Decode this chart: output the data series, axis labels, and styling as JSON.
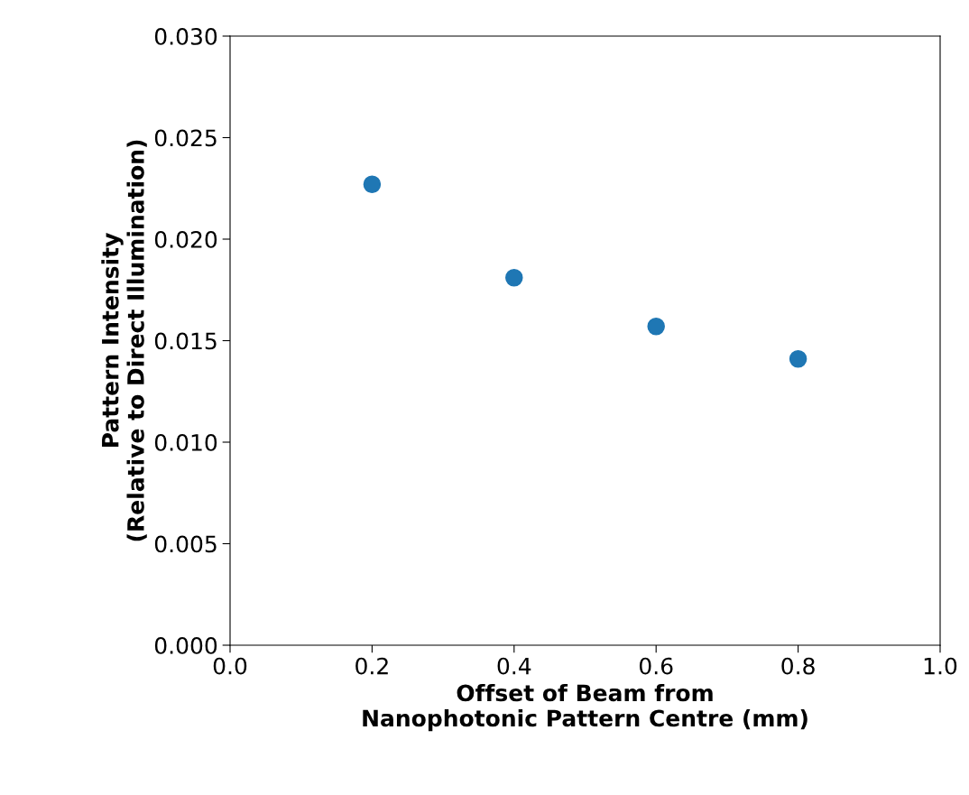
{
  "chart_data": {
    "type": "scatter",
    "xlabel": "Offset of Beam from\nNanophotonic Pattern Centre (mm)",
    "ylabel": "Pattern Intensity\n(Relative to Direct Illumination)",
    "x": [
      0.2,
      0.4,
      0.6,
      0.8
    ],
    "series": [
      {
        "color": "#1f77b4",
        "values": [
          0.0227,
          0.0181,
          0.0157,
          0.0141
        ]
      }
    ],
    "xlim": [
      0.0,
      1.0
    ],
    "xticks": [
      {
        "value": 0.0,
        "label": "0.0"
      },
      0.2,
      0.4,
      0.6,
      0.8,
      {
        "value": 1.0,
        "label": "1.0"
      }
    ],
    "ylim": [
      0.0,
      0.03
    ],
    "yticks": [
      {
        "value": 0.0,
        "label": "0.000"
      },
      {
        "value": 0.005,
        "label": "0.005"
      },
      {
        "value": 0.01,
        "label": "0.010"
      },
      {
        "value": 0.015,
        "label": "0.015"
      },
      {
        "value": 0.02,
        "label": "0.020"
      },
      {
        "value": 0.025,
        "label": "0.025"
      },
      {
        "value": 0.03,
        "label": "0.030"
      }
    ],
    "grid": false,
    "marker": "circle"
  }
}
